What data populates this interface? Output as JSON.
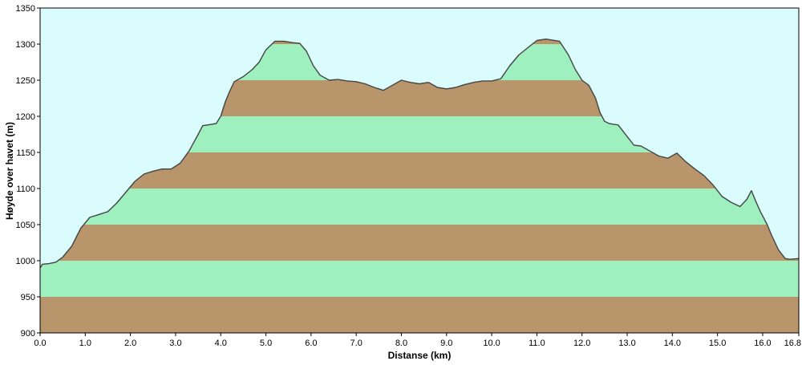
{
  "chart_data": {
    "type": "area",
    "title": "",
    "xlabel": "Distanse   (km)",
    "ylabel": "Høyde over havet (m)",
    "xlim": [
      0,
      16.8
    ],
    "ylim": [
      900,
      1350
    ],
    "x_ticks": [
      0,
      1,
      2,
      3,
      4,
      5,
      6,
      7,
      8,
      9,
      10,
      11,
      12,
      13,
      14,
      15,
      16,
      16.8
    ],
    "x_tick_labels": [
      "0.0",
      "1.0",
      "2.0",
      "3.0",
      "4.0",
      "5.0",
      "6.0",
      "7.0",
      "8.0",
      "9.0",
      "10.0",
      "11.0",
      "12.0",
      "13.0",
      "14.0",
      "15.0",
      "16.0",
      "16.8"
    ],
    "y_ticks": [
      900,
      950,
      1000,
      1050,
      1100,
      1150,
      1200,
      1250,
      1300,
      1350
    ],
    "y_tick_labels": [
      "900",
      "950",
      "1000",
      "1050",
      "1100",
      "1150",
      "1200",
      "1250",
      "1300",
      "1350"
    ],
    "band_step": 50,
    "colors": {
      "sky": "#dafcfc",
      "band_green": "#9ef0bf",
      "band_brown": "#b8956a",
      "line": "#444444",
      "grid": "#000000"
    },
    "x": [
      0.0,
      0.05,
      0.2,
      0.35,
      0.5,
      0.7,
      0.9,
      1.1,
      1.3,
      1.5,
      1.7,
      1.9,
      2.1,
      2.3,
      2.5,
      2.7,
      2.9,
      3.1,
      3.3,
      3.5,
      3.6,
      3.8,
      3.9,
      4.0,
      4.1,
      4.2,
      4.3,
      4.5,
      4.7,
      4.85,
      5.0,
      5.2,
      5.4,
      5.6,
      5.75,
      5.9,
      6.05,
      6.2,
      6.4,
      6.6,
      6.8,
      7.0,
      7.2,
      7.4,
      7.6,
      7.8,
      8.0,
      8.2,
      8.4,
      8.6,
      8.8,
      9.0,
      9.2,
      9.4,
      9.6,
      9.8,
      10.0,
      10.2,
      10.4,
      10.6,
      10.8,
      11.0,
      11.2,
      11.5,
      11.7,
      11.85,
      12.0,
      12.15,
      12.3,
      12.4,
      12.5,
      12.6,
      12.8,
      13.0,
      13.15,
      13.3,
      13.5,
      13.7,
      13.9,
      14.1,
      14.3,
      14.5,
      14.7,
      14.9,
      15.1,
      15.3,
      15.5,
      15.65,
      15.75,
      15.85,
      15.95,
      16.1,
      16.2,
      16.35,
      16.5,
      16.6,
      16.8
    ],
    "y": [
      990,
      995,
      996,
      998,
      1005,
      1020,
      1045,
      1060,
      1064,
      1068,
      1080,
      1095,
      1110,
      1120,
      1124,
      1127,
      1127,
      1135,
      1152,
      1175,
      1187,
      1189,
      1190,
      1200,
      1220,
      1235,
      1248,
      1255,
      1265,
      1275,
      1292,
      1304,
      1304,
      1302,
      1301,
      1290,
      1270,
      1257,
      1250,
      1251,
      1249,
      1248,
      1245,
      1240,
      1236,
      1243,
      1250,
      1247,
      1245,
      1247,
      1240,
      1238,
      1240,
      1244,
      1247,
      1249,
      1249,
      1252,
      1270,
      1285,
      1295,
      1305,
      1307,
      1304,
      1285,
      1265,
      1250,
      1243,
      1225,
      1205,
      1193,
      1190,
      1188,
      1172,
      1160,
      1159,
      1152,
      1145,
      1142,
      1149,
      1137,
      1127,
      1118,
      1105,
      1089,
      1081,
      1075,
      1085,
      1097,
      1082,
      1068,
      1050,
      1035,
      1015,
      1003,
      1002,
      1003
    ]
  }
}
